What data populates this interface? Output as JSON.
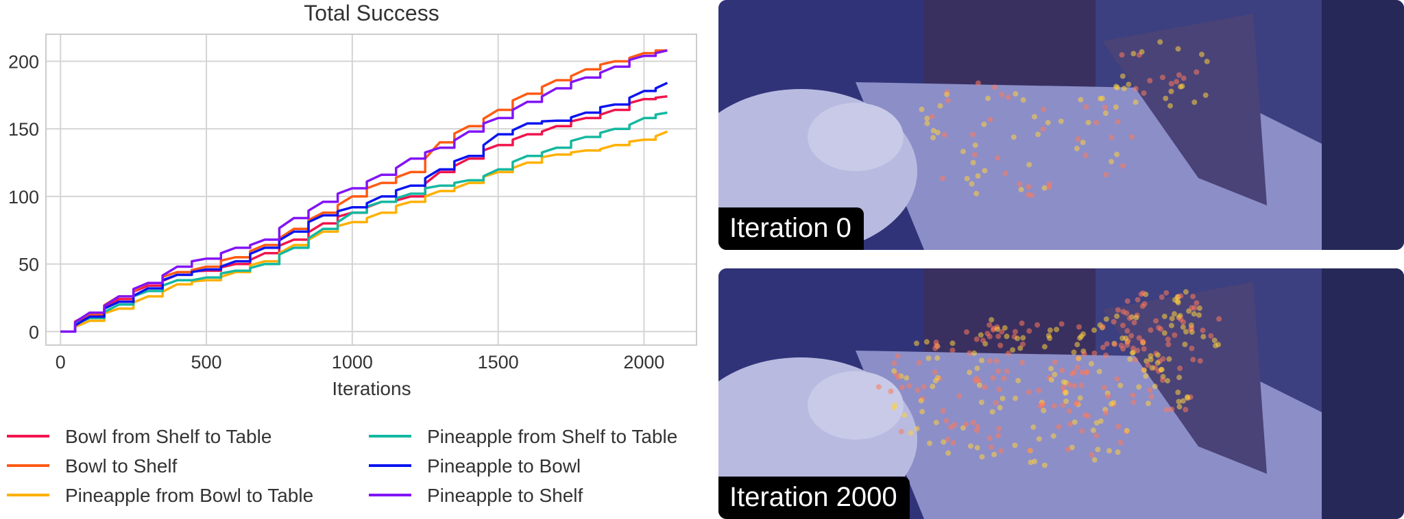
{
  "chart_data": {
    "type": "line",
    "title": "Total Success",
    "xlabel": "Iterations",
    "ylabel": "",
    "xlim": [
      -50,
      2180
    ],
    "ylim": [
      -10,
      220
    ],
    "xticks": [
      0,
      500,
      1000,
      1500,
      2000
    ],
    "yticks": [
      0,
      50,
      100,
      150,
      200
    ],
    "grid": true,
    "legend_placement": "bottom, two columns",
    "series": [
      {
        "name": "Bowl from Shelf to Table",
        "color": "#f0144c",
        "x": [
          0,
          100,
          200,
          300,
          400,
          500,
          600,
          700,
          800,
          900,
          1000,
          1100,
          1200,
          1300,
          1400,
          1500,
          1600,
          1700,
          1800,
          1900,
          2000,
          2080
        ],
        "y": [
          0,
          12,
          24,
          34,
          42,
          45,
          50,
          58,
          68,
          80,
          88,
          96,
          100,
          118,
          128,
          138,
          146,
          152,
          158,
          164,
          172,
          174
        ]
      },
      {
        "name": "Bowl to Shelf",
        "color": "#ff5a14",
        "x": [
          0,
          100,
          200,
          300,
          400,
          500,
          600,
          700,
          800,
          900,
          1000,
          1100,
          1200,
          1300,
          1400,
          1500,
          1600,
          1700,
          1800,
          1900,
          2000,
          2080
        ],
        "y": [
          0,
          13,
          26,
          36,
          44,
          48,
          55,
          64,
          76,
          88,
          100,
          110,
          118,
          140,
          152,
          164,
          176,
          186,
          194,
          200,
          206,
          208
        ]
      },
      {
        "name": "Pineapple from Bowl to Table",
        "color": "#ffb000",
        "x": [
          0,
          100,
          200,
          300,
          400,
          500,
          600,
          700,
          800,
          900,
          1000,
          1100,
          1200,
          1300,
          1400,
          1500,
          1600,
          1700,
          1800,
          1900,
          2000,
          2080
        ],
        "y": [
          0,
          8,
          17,
          26,
          35,
          38,
          44,
          52,
          64,
          74,
          81,
          88,
          96,
          104,
          110,
          118,
          125,
          131,
          134,
          138,
          142,
          148
        ]
      },
      {
        "name": "Pineapple from Shelf to Table",
        "color": "#14b8a0",
        "x": [
          0,
          100,
          200,
          300,
          400,
          500,
          600,
          700,
          800,
          900,
          1000,
          1100,
          1200,
          1300,
          1400,
          1500,
          1600,
          1700,
          1800,
          1900,
          2000,
          2080
        ],
        "y": [
          0,
          10,
          20,
          30,
          38,
          40,
          45,
          50,
          62,
          76,
          88,
          96,
          102,
          108,
          112,
          120,
          130,
          136,
          144,
          150,
          158,
          162
        ]
      },
      {
        "name": "Pineapple to Bowl",
        "color": "#0a14f0",
        "x": [
          0,
          100,
          200,
          300,
          400,
          500,
          600,
          700,
          800,
          900,
          1000,
          1100,
          1200,
          1300,
          1400,
          1500,
          1600,
          1700,
          1800,
          1900,
          2000,
          2080
        ],
        "y": [
          0,
          11,
          22,
          32,
          42,
          46,
          52,
          62,
          74,
          86,
          92,
          100,
          108,
          120,
          130,
          146,
          154,
          156,
          162,
          168,
          178,
          184
        ]
      },
      {
        "name": "Pineapple to Shelf",
        "color": "#8214f5",
        "x": [
          0,
          100,
          200,
          300,
          400,
          500,
          600,
          700,
          800,
          900,
          1000,
          1100,
          1200,
          1300,
          1400,
          1500,
          1600,
          1700,
          1800,
          1900,
          2000,
          2080
        ],
        "y": [
          0,
          14,
          26,
          36,
          48,
          54,
          62,
          68,
          84,
          96,
          106,
          116,
          128,
          136,
          148,
          158,
          170,
          180,
          188,
          196,
          204,
          208
        ]
      }
    ]
  },
  "panels": [
    {
      "label": "Iteration 0"
    },
    {
      "label": "Iteration 2000"
    }
  ]
}
